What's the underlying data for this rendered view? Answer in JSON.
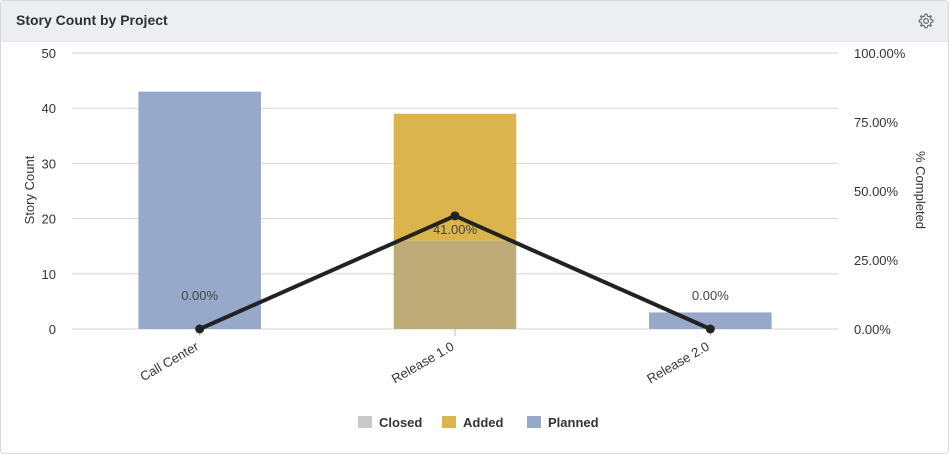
{
  "header": {
    "title": "Story Count by Project",
    "settings_icon": "gear-icon"
  },
  "chart_data": {
    "type": "bar",
    "stacked": true,
    "categories": [
      "Call Center",
      "Release 1.0",
      "Release 2.0"
    ],
    "series": [
      {
        "name": "Closed",
        "color": "#bdab78",
        "legend_color": "#c9c9c9",
        "values": [
          0,
          16,
          0
        ]
      },
      {
        "name": "Added",
        "color": "#dbb54b",
        "legend_color": "#dbb54b",
        "values": [
          0,
          23,
          0
        ]
      },
      {
        "name": "Planned",
        "color": "#97a9cb",
        "legend_color": "#97a9cb",
        "values": [
          43,
          0,
          3
        ]
      }
    ],
    "line": {
      "name": "% Completed",
      "values": [
        0,
        41,
        0
      ],
      "labels": [
        "0.00%",
        "41.00%",
        "0.00%"
      ],
      "color": "#222222"
    },
    "ylabel": "Story Count",
    "y2label": "% Completed",
    "ylim": [
      0,
      50
    ],
    "yticks": [
      0,
      10,
      20,
      30,
      40,
      50
    ],
    "y2lim": [
      0,
      100
    ],
    "y2ticks": [
      "0.00%",
      "25.00%",
      "50.00%",
      "75.00%",
      "100.00%"
    ],
    "grid": true,
    "legend_position": "bottom"
  }
}
